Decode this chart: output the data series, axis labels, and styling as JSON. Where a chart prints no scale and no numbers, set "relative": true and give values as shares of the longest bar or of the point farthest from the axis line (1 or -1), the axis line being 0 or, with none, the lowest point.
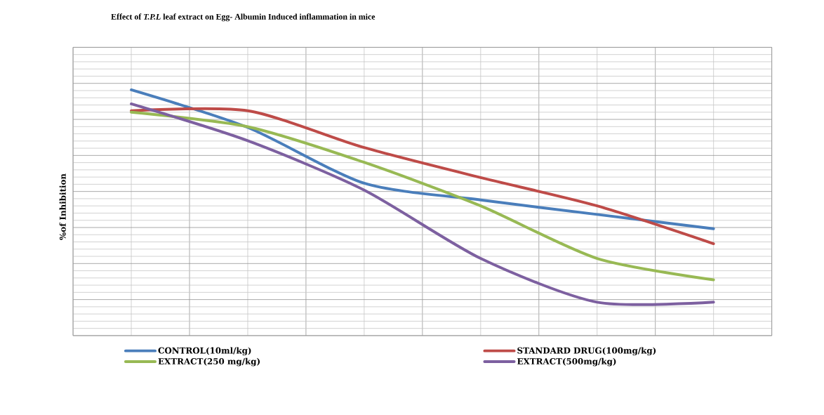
{
  "chart_data": {
    "type": "line",
    "title": "Effect of *T.P.L* leaf extract on Egg- Albumin Induced inflammation in mice",
    "ylabel": "%of Inhibition",
    "relative": true,
    "grid": true,
    "legend": "bottom",
    "marker": "none",
    "categories": [
      null,
      null,
      null,
      null,
      null,
      null
    ],
    "series": [
      {
        "name": "CONTROL(10ml/kg)",
        "color": "#4a7ebb",
        "values": [
          1,
          0.847,
          0.62,
          0.552,
          0.493,
          0.435
        ]
      },
      {
        "name": "STANDARD DRUG(100mg/kg)",
        "color": "#be4b48",
        "values": [
          0.915,
          0.915,
          0.765,
          0.643,
          0.528,
          0.374
        ]
      },
      {
        "name": "EXTRACT(250 mg/kg)",
        "color": "#98b954",
        "values": [
          0.909,
          0.85,
          0.705,
          0.528,
          0.314,
          0.227
        ]
      },
      {
        "name": "EXTRACT(500mg/kg)",
        "color": "#7d60a0",
        "values": [
          0.943,
          0.793,
          0.592,
          0.314,
          0.136,
          0.136
        ]
      }
    ]
  }
}
